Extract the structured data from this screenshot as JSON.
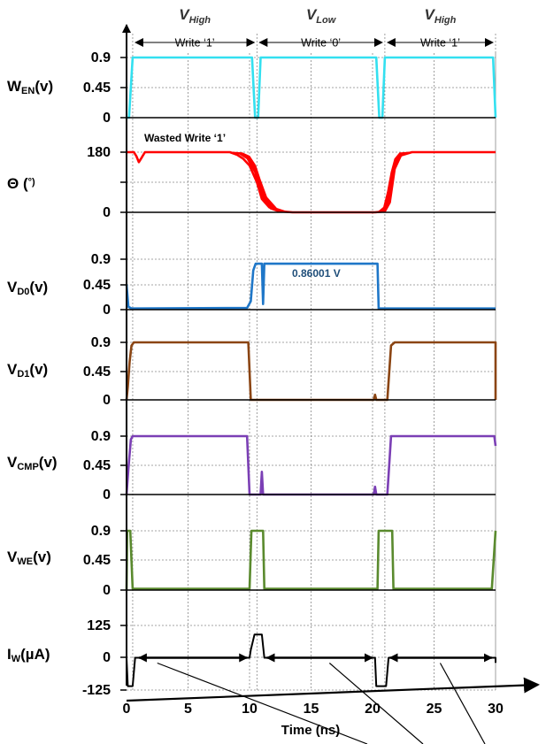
{
  "chart_data": {
    "type": "line",
    "xlabel": "Time (ns)",
    "x_ticks": [
      "0",
      "5",
      "10",
      "15",
      "20",
      "25",
      "30"
    ],
    "xlim": [
      0,
      30
    ],
    "phases": [
      {
        "main": "V",
        "sub": "High",
        "write": "Write ‘1’"
      },
      {
        "main": "V",
        "sub": "Low",
        "write": "Write ‘0’"
      },
      {
        "main": "V",
        "sub": "High",
        "write": "Write ‘1’"
      }
    ],
    "phase_bounds": [
      0.5,
      10.6,
      21.0,
      30.0
    ],
    "panels": [
      {
        "id": "wen",
        "label_main": "W",
        "label_sub": "EN",
        "label_suffix": "(v)",
        "ytick_labels": [
          "0.9",
          "0.45",
          "0"
        ],
        "ylim": [
          0,
          0.9
        ],
        "color": "#33e0f0",
        "series": [
          [
            0,
            0
          ],
          [
            0.2,
            0
          ],
          [
            0.5,
            0.9
          ],
          [
            10.2,
            0.9
          ],
          [
            10.45,
            0
          ],
          [
            10.7,
            0
          ],
          [
            10.9,
            0.9
          ],
          [
            20.3,
            0.9
          ],
          [
            20.55,
            0
          ],
          [
            20.8,
            0
          ],
          [
            21.0,
            0.9
          ],
          [
            29.8,
            0.9
          ],
          [
            30,
            0
          ]
        ]
      },
      {
        "id": "theta",
        "label_main": "Θ (",
        "label_sub": "",
        "label_suffix": "°)",
        "ytick_labels": [
          "180",
          "",
          "0"
        ],
        "ylim": [
          0,
          180
        ],
        "color": "#ff0000",
        "annotation": "Wasted Write ‘1’",
        "series": [
          [
            0,
            180
          ],
          [
            0.6,
            180
          ],
          [
            0.8,
            168
          ],
          [
            1.0,
            150
          ],
          [
            1.2,
            162
          ],
          [
            1.5,
            180
          ],
          [
            8.4,
            180
          ],
          [
            9.0,
            172
          ],
          [
            9.5,
            160
          ],
          [
            10.0,
            140
          ],
          [
            10.6,
            90
          ],
          [
            11.0,
            40
          ],
          [
            11.6,
            15
          ],
          [
            12.5,
            3
          ],
          [
            13.5,
            0
          ],
          [
            20.2,
            0
          ],
          [
            21.0,
            3
          ],
          [
            21.4,
            30
          ],
          [
            21.8,
            130
          ],
          [
            22.3,
            170
          ],
          [
            23.2,
            180
          ],
          [
            30,
            180
          ]
        ]
      },
      {
        "id": "vd0",
        "label_main": "V",
        "label_sub": "D0",
        "label_suffix": "(v)",
        "ytick_labels": [
          "0.9",
          "0.45",
          "0"
        ],
        "ylim": [
          0,
          0.9
        ],
        "color": "#1f77c8",
        "annotation": "0.86001 V",
        "series": [
          [
            0,
            0.45
          ],
          [
            0.15,
            0.05
          ],
          [
            0.4,
            0.02
          ],
          [
            9.8,
            0.03
          ],
          [
            10.1,
            0.15
          ],
          [
            10.3,
            0.7
          ],
          [
            10.5,
            0.82
          ],
          [
            11.0,
            0.82
          ],
          [
            11.1,
            0.1
          ],
          [
            11.2,
            0.82
          ],
          [
            20.4,
            0.82
          ],
          [
            20.5,
            0.02
          ],
          [
            30,
            0.02
          ]
        ]
      },
      {
        "id": "vd1",
        "label_main": "V",
        "label_sub": "D1",
        "label_suffix": "(v)",
        "ytick_labels": [
          "0.9",
          "0.45",
          "0"
        ],
        "ylim": [
          0,
          0.9
        ],
        "color": "#8b4513",
        "series": [
          [
            0,
            0
          ],
          [
            0.1,
            0.2
          ],
          [
            0.25,
            0.6
          ],
          [
            0.4,
            0.85
          ],
          [
            0.6,
            0.9
          ],
          [
            9.9,
            0.9
          ],
          [
            10.1,
            0
          ],
          [
            20.1,
            0
          ],
          [
            20.2,
            0.08
          ],
          [
            20.3,
            0
          ],
          [
            21.2,
            0
          ],
          [
            21.5,
            0.85
          ],
          [
            21.8,
            0.9
          ],
          [
            30,
            0.9
          ],
          [
            30,
            0
          ]
        ]
      },
      {
        "id": "vcmp",
        "label_main": "V",
        "label_sub": "CMP",
        "label_suffix": "(v)",
        "ytick_labels": [
          "0.9",
          "0.45",
          "0"
        ],
        "ylim": [
          0,
          0.9
        ],
        "color": "#7b3fb5",
        "series": [
          [
            0,
            0
          ],
          [
            0.15,
            0.4
          ],
          [
            0.35,
            0.85
          ],
          [
            0.5,
            0.9
          ],
          [
            9.8,
            0.9
          ],
          [
            10.0,
            0
          ],
          [
            10.9,
            0
          ],
          [
            11.0,
            0.35
          ],
          [
            11.1,
            0
          ],
          [
            20.1,
            0
          ],
          [
            20.2,
            0.12
          ],
          [
            20.3,
            0
          ],
          [
            21.2,
            0
          ],
          [
            21.5,
            0.9
          ],
          [
            29.9,
            0.9
          ],
          [
            30,
            0.75
          ]
        ]
      },
      {
        "id": "vwe",
        "label_main": "V",
        "label_sub": "WE",
        "label_suffix": "(v)",
        "ytick_labels": [
          "0.9",
          "0.45",
          "0"
        ],
        "ylim": [
          0,
          0.9
        ],
        "color": "#5a8a2e",
        "series": [
          [
            0,
            0
          ],
          [
            0.05,
            0.9
          ],
          [
            0.3,
            0.9
          ],
          [
            0.5,
            0.02
          ],
          [
            10.0,
            0.02
          ],
          [
            10.15,
            0.9
          ],
          [
            11.1,
            0.9
          ],
          [
            11.2,
            0.02
          ],
          [
            20.4,
            0.02
          ],
          [
            20.5,
            0.9
          ],
          [
            21.6,
            0.9
          ],
          [
            21.7,
            0.02
          ],
          [
            29.7,
            0.02
          ],
          [
            30,
            0.9
          ]
        ]
      },
      {
        "id": "iw",
        "label_main": "I",
        "label_sub": "W",
        "label_suffix": "(µA)",
        "ytick_labels": [
          "125",
          "0",
          "-125"
        ],
        "ylim": [
          -125,
          125
        ],
        "color": "#000000",
        "series": [
          [
            0,
            0
          ],
          [
            0.1,
            -110
          ],
          [
            0.5,
            -110
          ],
          [
            0.7,
            0
          ],
          [
            10.0,
            0
          ],
          [
            10.1,
            30
          ],
          [
            10.4,
            90
          ],
          [
            11.0,
            90
          ],
          [
            11.2,
            0
          ],
          [
            20.2,
            0
          ],
          [
            20.3,
            -110
          ],
          [
            21.1,
            -110
          ],
          [
            21.3,
            0
          ],
          [
            30,
            0
          ],
          [
            30,
            -20
          ]
        ]
      }
    ]
  }
}
